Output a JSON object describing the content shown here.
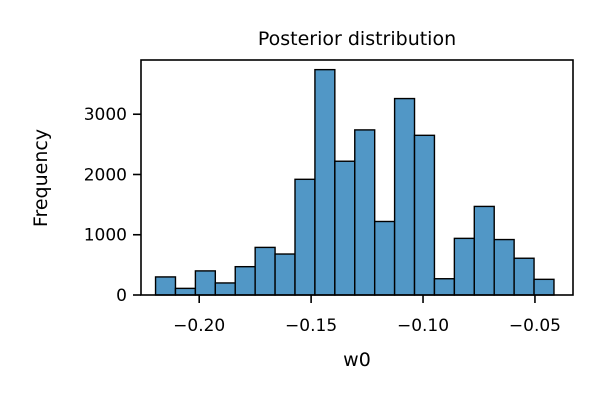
{
  "chart_data": {
    "type": "bar",
    "title": "Posterior distribution",
    "xlabel": "w0",
    "ylabel": "Frequency",
    "xlim": [
      -0.226,
      -0.033
    ],
    "ylim": [
      0,
      3900
    ],
    "xticks": [
      -0.2,
      -0.15,
      -0.1,
      -0.05
    ],
    "xtick_labels": [
      "−0.20",
      "−0.15",
      "−0.10",
      "−0.05"
    ],
    "yticks": [
      0,
      1000,
      2000,
      3000
    ],
    "ytick_labels": [
      "0",
      "1000",
      "2000",
      "3000"
    ],
    "grid": false,
    "bar_color": "#5197c6",
    "edge_color": "#000000",
    "bin_edges": [
      -0.2195,
      -0.2106,
      -0.2017,
      -0.1928,
      -0.1839,
      -0.175,
      -0.1661,
      -0.1572,
      -0.1483,
      -0.1394,
      -0.1305,
      -0.1216,
      -0.1127,
      -0.1038,
      -0.0949,
      -0.086,
      -0.0771,
      -0.0682,
      -0.0593,
      -0.0504,
      -0.0415
    ],
    "values": [
      300,
      110,
      400,
      200,
      470,
      790,
      680,
      1920,
      3740,
      2220,
      2740,
      1220,
      3260,
      2650,
      270,
      940,
      1470,
      920,
      610,
      260
    ]
  }
}
